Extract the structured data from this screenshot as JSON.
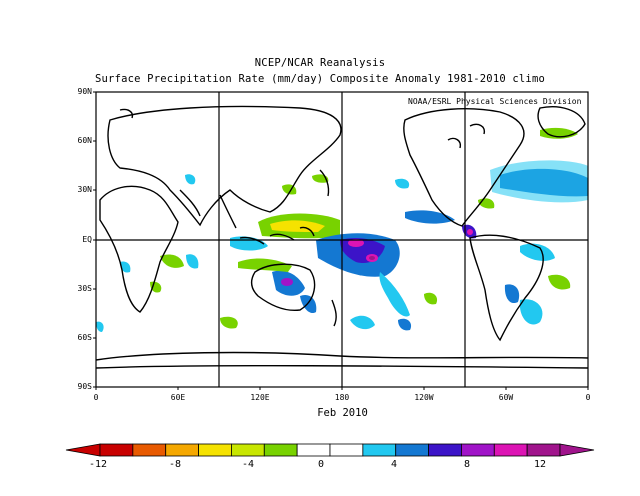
{
  "header": {
    "title": "NCEP/NCAR Reanalysis",
    "subtitle": "Surface Precipitation Rate (mm/day) Composite Anomaly 1981-2010 climo",
    "credit": "NOAA/ESRL Physical Sciences Division",
    "date": "Feb 2010"
  },
  "axes": {
    "lat_labels": [
      "90N",
      "60N",
      "30N",
      "EQ",
      "30S",
      "60S",
      "90S"
    ],
    "lon_labels": [
      "0",
      "60E",
      "120E",
      "180",
      "120W",
      "60W",
      "0"
    ]
  },
  "colorbar": {
    "labels": [
      "-12",
      "-8",
      "-4",
      "0",
      "4",
      "8",
      "12"
    ],
    "colors": [
      "#c80000",
      "#e85a00",
      "#f5a800",
      "#f5e200",
      "#c8e600",
      "#78d200",
      "#ffffff",
      "#ffffff",
      "#22c8f0",
      "#1478d2",
      "#3c14c8",
      "#a014c8",
      "#dc14b4",
      "#a0148c"
    ]
  },
  "anomaly_colors": {
    "light_blue": "#22c8f0",
    "blue": "#1478d2",
    "dark_blue": "#3c14c8",
    "magenta": "#dc14b4",
    "purple": "#a014c8",
    "green": "#78d200",
    "yellow_green": "#c8e600",
    "yellow": "#f5e200"
  }
}
